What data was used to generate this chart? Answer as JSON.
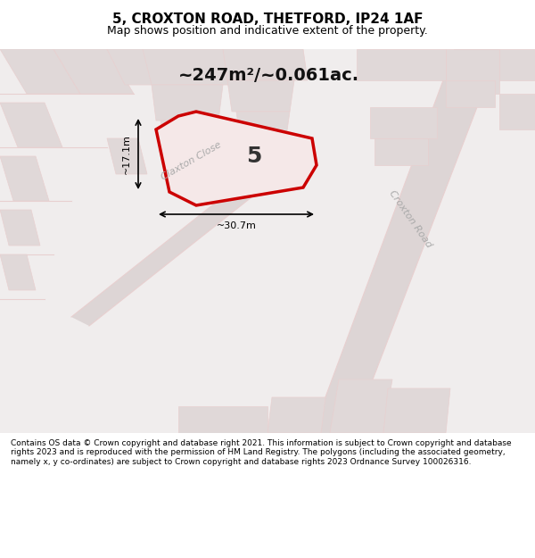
{
  "title": "5, CROXTON ROAD, THETFORD, IP24 1AF",
  "subtitle": "Map shows position and indicative extent of the property.",
  "area_text": "~247m²/~0.061ac.",
  "property_number": "5",
  "dim_width": "~30.7m",
  "dim_height": "~17.1m",
  "footer": "Contains OS data © Crown copyright and database right 2021. This information is subject to Crown copyright and database rights 2023 and is reproduced with the permission of HM Land Registry. The polygons (including the associated geometry, namely x, y co-ordinates) are subject to Crown copyright and database rights 2023 Ordnance Survey 100026316.",
  "bg_color": "#f5f0f0",
  "map_bg": "#f5f0f0",
  "property_fill": "#f0e8e8",
  "property_edge": "#cc0000",
  "road_color": "#e8d0d0",
  "building_color": "#e0d8d8",
  "road_label_color": "#aaaaaa",
  "title_color": "#000000",
  "footer_color": "#000000",
  "dim_color": "#000000"
}
